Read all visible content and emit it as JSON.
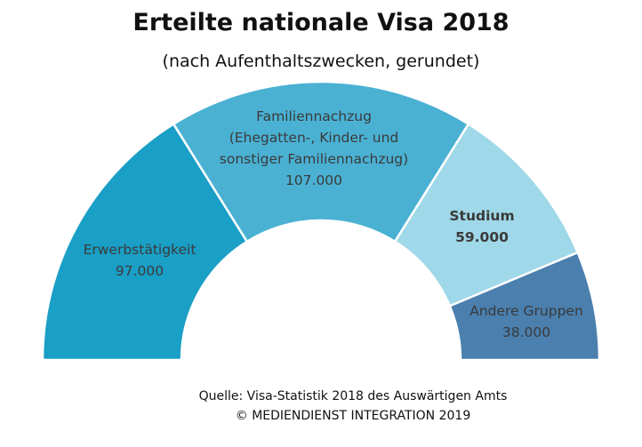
{
  "chart_data": {
    "type": "pie",
    "variant": "semi-donut",
    "title": "Erteilte nationale Visa 2018",
    "subtitle": "(nach Aufenthaltszwecken, gerundet)",
    "categories": [
      [
        "Erwerbstätigkeit"
      ],
      [
        "Familiennachzug",
        "(Ehegatten-, Kinder- und",
        "sonstiger Familiennachzug)"
      ],
      [
        "Studium"
      ],
      [
        "Andere Gruppen"
      ]
    ],
    "values": [
      97000,
      107000,
      59000,
      38000
    ],
    "value_labels": [
      "97.000",
      "107.000",
      "59.000",
      "38.000"
    ],
    "colors": [
      "#1a9fc6",
      "#4ab1d3",
      "#9fd8e8",
      "#4a7fae"
    ],
    "legend": "none",
    "source": [
      "Quelle: Visa-Statistik 2018 des Auswärtigen Amts",
      "© MEDIENDIENST INTEGRATION 2019"
    ]
  }
}
